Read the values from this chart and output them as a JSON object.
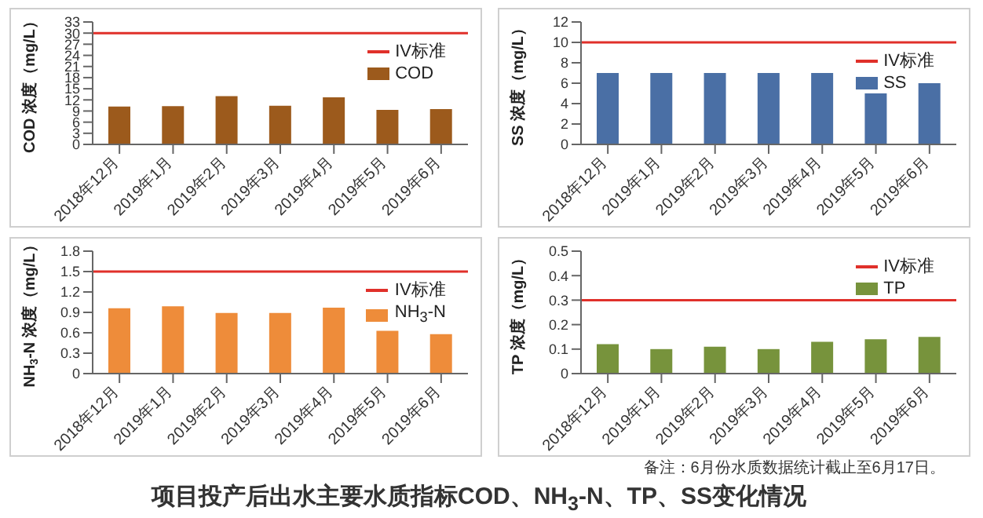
{
  "chart_data": [
    {
      "type": "bar",
      "categories": [
        "2018年12月",
        "2019年1月",
        "2019年2月",
        "2019年3月",
        "2019年4月",
        "2019年5月",
        "2019年6月"
      ],
      "ylabel": "COD 浓度（mg/L）",
      "series": [
        {
          "name": "COD",
          "color": "#9c5a1c",
          "values": [
            10.2,
            10.3,
            13,
            10.4,
            12.7,
            9.3,
            9.5
          ]
        }
      ],
      "ylim": [
        0,
        33
      ],
      "yticks": [
        0,
        3,
        6,
        9,
        12,
        15,
        18,
        21,
        24,
        27,
        30,
        33
      ],
      "ref_lines": [
        {
          "axis": "y",
          "value": 30,
          "label": "IV标准",
          "color": "#e0302a"
        }
      ],
      "legend": "top right"
    },
    {
      "type": "bar",
      "categories": [
        "2018年12月",
        "2019年1月",
        "2019年2月",
        "2019年3月",
        "2019年4月",
        "2019年5月",
        "2019年6月"
      ],
      "ylabel": "SS 浓度（mg/L）",
      "series": [
        {
          "name": "SS",
          "color": "#4a6fa5",
          "values": [
            7,
            7,
            7,
            7,
            7,
            5,
            6
          ]
        }
      ],
      "ylim": [
        0,
        12
      ],
      "yticks": [
        0,
        2,
        4,
        6,
        8,
        10,
        12
      ],
      "ref_lines": [
        {
          "axis": "y",
          "value": 10,
          "label": "IV标准",
          "color": "#e0302a"
        }
      ],
      "legend": "top right"
    },
    {
      "type": "bar",
      "categories": [
        "2018年12月",
        "2019年1月",
        "2019年2月",
        "2019年3月",
        "2019年4月",
        "2019年5月",
        "2019年6月"
      ],
      "ylabel": "NH$_{3}$-N 浓度（mg/L）",
      "series": [
        {
          "name": "NH$_{3}$-N",
          "color": "#ee8c3a",
          "values": [
            0.96,
            0.99,
            0.89,
            0.89,
            0.97,
            0.63,
            0.58
          ]
        }
      ],
      "ylim": [
        0,
        1.8
      ],
      "yticks": [
        0,
        0.3,
        0.6,
        0.9,
        1.2,
        1.5,
        1.8
      ],
      "ref_lines": [
        {
          "axis": "y",
          "value": 1.5,
          "label": "IV标准",
          "color": "#e0302a"
        }
      ],
      "legend": "top right"
    },
    {
      "type": "bar",
      "categories": [
        "2018年12月",
        "2019年1月",
        "2019年2月",
        "2019年3月",
        "2019年4月",
        "2019年5月",
        "2019年6月"
      ],
      "ylabel": "TP 浓度（mg/L）",
      "series": [
        {
          "name": "TP",
          "color": "#77933c",
          "values": [
            0.12,
            0.1,
            0.11,
            0.1,
            0.13,
            0.14,
            0.15
          ]
        }
      ],
      "ylim": [
        0,
        0.5
      ],
      "yticks": [
        0,
        0.1,
        0.2,
        0.3,
        0.4,
        0.5
      ],
      "ref_lines": [
        {
          "axis": "y",
          "value": 0.3,
          "label": "IV标准",
          "color": "#e0302a"
        }
      ],
      "legend": "top right"
    },
    {
      "type": "other",
      "title": "项目投产后出水主要水质指标COD、NH$_{3}$-N、TP、SS变化情况",
      "annotations": [
        "备注：6月份水质数据统计截止至6月17日。"
      ]
    }
  ]
}
